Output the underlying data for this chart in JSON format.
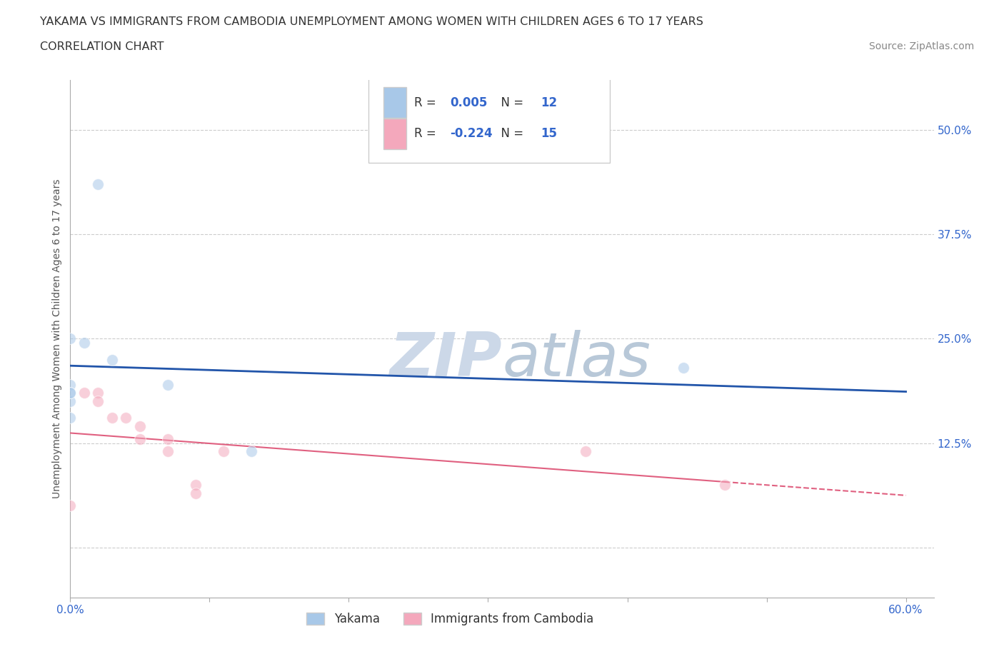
{
  "title_line1": "YAKAMA VS IMMIGRANTS FROM CAMBODIA UNEMPLOYMENT AMONG WOMEN WITH CHILDREN AGES 6 TO 17 YEARS",
  "title_line2": "CORRELATION CHART",
  "source_text": "Source: ZipAtlas.com",
  "ylabel": "Unemployment Among Women with Children Ages 6 to 17 years",
  "xlim": [
    0.0,
    0.62
  ],
  "ylim": [
    -0.06,
    0.56
  ],
  "xtick_vals": [
    0.0,
    0.1,
    0.2,
    0.3,
    0.4,
    0.5,
    0.6
  ],
  "xtick_labels": [
    "0.0%",
    "",
    "",
    "",
    "",
    "",
    "60.0%"
  ],
  "ytick_vals": [
    0.0,
    0.125,
    0.25,
    0.375,
    0.5
  ],
  "ytick_labels": [
    "",
    "12.5%",
    "25.0%",
    "37.5%",
    "50.0%"
  ],
  "yakama_x": [
    0.02,
    0.01,
    0.03,
    0.0,
    0.0,
    0.0,
    0.0,
    0.07,
    0.13,
    0.0,
    0.44,
    0.0
  ],
  "yakama_y": [
    0.435,
    0.245,
    0.225,
    0.25,
    0.195,
    0.175,
    0.155,
    0.195,
    0.115,
    0.185,
    0.215,
    0.185
  ],
  "cambodia_x": [
    0.01,
    0.02,
    0.02,
    0.03,
    0.04,
    0.05,
    0.05,
    0.07,
    0.07,
    0.09,
    0.09,
    0.11,
    0.37,
    0.47,
    0.0
  ],
  "cambodia_y": [
    0.185,
    0.185,
    0.175,
    0.155,
    0.155,
    0.145,
    0.13,
    0.13,
    0.115,
    0.075,
    0.065,
    0.115,
    0.115,
    0.075,
    0.05
  ],
  "yakama_color": "#A8C8E8",
  "cambodia_color": "#F4A8BC",
  "yakama_line_color": "#2255AA",
  "cambodia_line_color": "#E06080",
  "yakama_R": 0.005,
  "yakama_N": 12,
  "cambodia_R": -0.224,
  "cambodia_N": 15,
  "background_color": "#ffffff",
  "grid_color": "#cccccc",
  "watermark_color": "#ccd8e8",
  "marker_size": 130,
  "marker_alpha": 0.55,
  "label_color": "#3366cc",
  "text_color": "#333333"
}
